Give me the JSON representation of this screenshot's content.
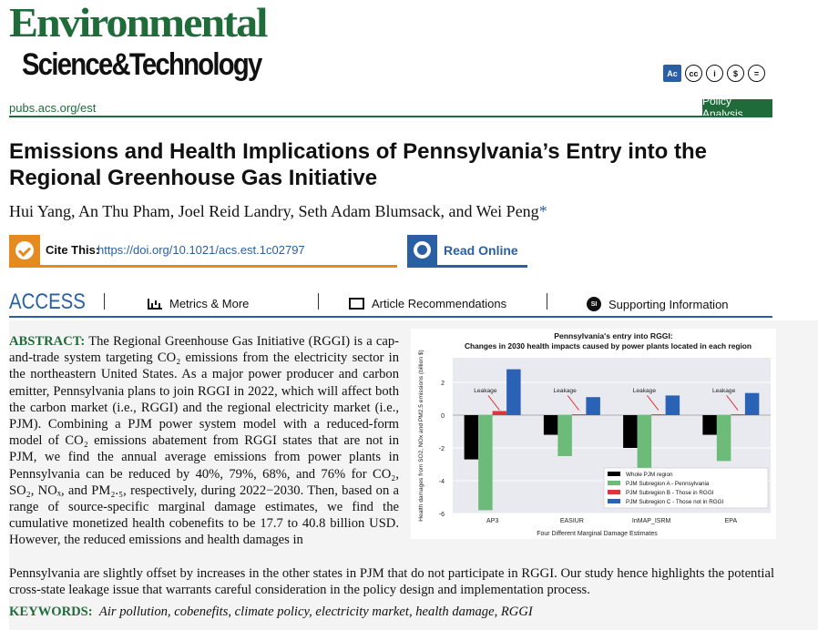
{
  "journal": {
    "logo_line1": "Environmental",
    "logo_line2": "Science&Technology",
    "url": "pubs.acs.org/est",
    "section": "Policy Analysis",
    "license_icons": [
      "acs-ac-icon",
      "cc-icon",
      "by-icon",
      "nc-icon",
      "nd-icon"
    ],
    "license_labels": [
      "Ac",
      "cc",
      "i",
      "$",
      "="
    ]
  },
  "article": {
    "title": "Emissions and Health Implications of Pennsylvania’s Entry into the Regional Greenhouse Gas Initiative",
    "authors": "Hui Yang, An Thu Pham, Joel Reid Landry, Seth Adam Blumsack, and Wei Peng",
    "corresponding_mark": "*"
  },
  "cite": {
    "label": "Cite This:",
    "link": "https://doi.org/10.1021/acs.est.1c02797"
  },
  "read_online": "Read Online",
  "access": {
    "label": "ACCESS",
    "tabs": [
      "Metrics & More",
      "Article Recommendations",
      "Supporting Information"
    ],
    "si_badge": "SI"
  },
  "abstract": {
    "label": "ABSTRACT:",
    "text_part1": "The Regional Greenhouse Gas Initiative (RGGI) is a cap-and-trade system targeting CO₂ emissions from the electricity sector in the northeastern United States. As a major power producer and carbon emitter, Pennsylvania plans to join RGGI in 2022, which will affect both the carbon market (i.e., RGGI) and the regional electricity market (i.e., PJM). Combining a PJM power system model with a reduced-form model of CO₂ emissions abatement from RGGI states that are not in PJM, we find the annual average emissions from power plants in Pennsylvania can be reduced by 40%, 79%, 68%, and 76% for CO₂, SO₂, NOₓ, and PM₂.₅, respectively, during 2022−2030. Then, based on a range of source-specific marginal damage estimates, we find the cumulative monetized health cobenefits to be 17.7 to 40.8 billion USD. However, the reduced emissions and health damages in",
    "text_part2": "Pennsylvania are slightly offset by increases in the other states in PJM that do not participate in RGGI. Our study hence highlights the potential cross-state leakage issue that warrants careful consideration in the policy design and implementation process."
  },
  "keywords": {
    "label": "KEYWORDS:",
    "text": "Air pollution, cobenefits, climate policy, electricity market, health damage, RGGI"
  },
  "chart_data": {
    "type": "bar",
    "title": "Pennsylvania's entry into RGGI:",
    "subtitle": "Changes in 2030 health impacts caused by power plants located in each region",
    "xlabel": "Four Different Marginal Damage Estimates",
    "ylabel": "Health damages from SO2, NOx and PM2.5 emissions (billion $)",
    "categories": [
      "AP3",
      "EASIUR",
      "InMAP_ISRM",
      "EPA"
    ],
    "ylim": [
      -6,
      3.5
    ],
    "yticks": [
      2,
      0,
      -2,
      -4,
      -6
    ],
    "series": [
      {
        "name": "Whole PJM region",
        "color": "#000000",
        "values": [
          -2.7,
          -1.2,
          -2.0,
          -1.2
        ]
      },
      {
        "name": "PJM Subregion A - Pennsylvania",
        "color": "#6dbb78",
        "values": [
          -5.8,
          -2.5,
          -3.3,
          -2.8
        ]
      },
      {
        "name": "PJM Subregion B - Those in RGGI",
        "color": "#d9373a",
        "values": [
          0.25,
          0.05,
          0.05,
          0.05
        ]
      },
      {
        "name": "PJM Subregion C - Those not in RGGI",
        "color": "#2a62b5",
        "values": [
          2.8,
          1.1,
          1.2,
          1.35
        ]
      }
    ],
    "annotations": [
      "Leakage",
      "Leakage",
      "Leakage",
      "Leakage"
    ],
    "legend_position": "bottom-right",
    "grid": true
  }
}
